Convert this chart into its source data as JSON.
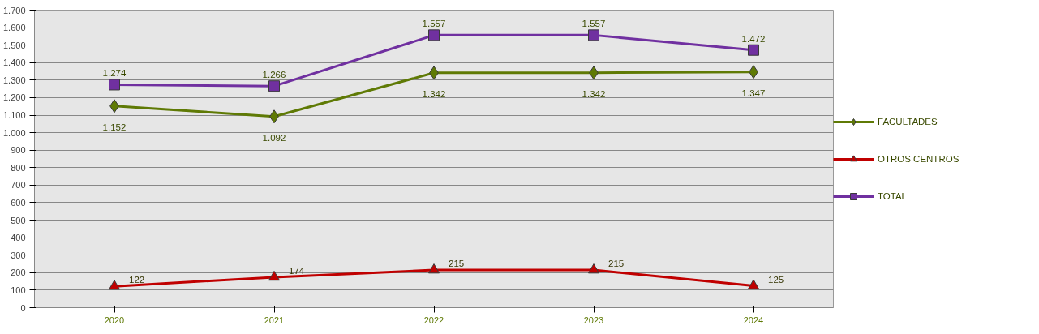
{
  "chart_data": {
    "type": "line",
    "categories": [
      "2020",
      "2021",
      "2022",
      "2023",
      "2024"
    ],
    "series": [
      {
        "name": "FACULTADES",
        "color": "#5f7a05",
        "marker": "diamond",
        "values": [
          1152,
          1092,
          1342,
          1342,
          1347
        ],
        "value_labels": [
          "1.152",
          "1.092",
          "1.342",
          "1.342",
          "1.347"
        ]
      },
      {
        "name": "OTROS CENTROS",
        "color": "#c00000",
        "marker": "triangle",
        "values": [
          122,
          174,
          215,
          215,
          125
        ],
        "value_labels": [
          "122",
          "174",
          "215",
          "215",
          "125"
        ]
      },
      {
        "name": "TOTAL",
        "color": "#7030a0",
        "marker": "square",
        "values": [
          1274,
          1266,
          1557,
          1557,
          1472
        ],
        "value_labels": [
          "1.274",
          "1.266",
          "1.557",
          "1.557",
          "1.472"
        ]
      }
    ],
    "ylim": [
      0,
      1700
    ],
    "yticks": [
      0,
      100,
      200,
      300,
      400,
      500,
      600,
      700,
      800,
      900,
      {
        "value": 1000,
        "label": "1.000"
      },
      {
        "value": 1100,
        "label": "1.100"
      },
      {
        "value": 1200,
        "label": "1.200"
      },
      {
        "value": 1300,
        "label": "1.300"
      },
      {
        "value": 1400,
        "label": "1.400"
      },
      {
        "value": 1500,
        "label": "1.500"
      },
      {
        "value": 1600,
        "label": "1.600"
      },
      {
        "value": 1700,
        "label": "1.700"
      }
    ],
    "grid": "y",
    "legend": "right",
    "line_style": "solid"
  }
}
